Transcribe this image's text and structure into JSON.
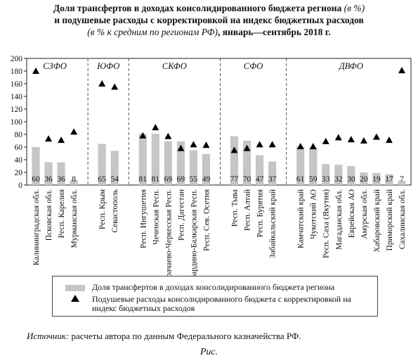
{
  "title": {
    "line1_a": "Доля трансфертов в доходах консолидированного бюджета региона ",
    "line1_b": "(в %)",
    "line2": "и подушевые расходы с корректировкой на индекс бюджетных расходов",
    "line3_a": "(в % к средним по регионам РФ)",
    "line3_b": ", январь—сентябрь 2018 г."
  },
  "source": {
    "label": "Источник:",
    "text": " расчеты автора по данным Федерального казначейства РФ."
  },
  "caption": "Рис.",
  "legend": {
    "bars": "Доля трансфертов в доходах консолидированного бюджета региона",
    "markers": "Подушевые расходы консолидированного бюджета с корректировкой на индекс бюджетных расходов"
  },
  "colors": {
    "bar": "#c6c6c6",
    "marker": "#000000",
    "divider": "#555555"
  },
  "chart_data": {
    "type": "bar",
    "ylim": [
      0,
      200
    ],
    "yticks": [
      0,
      20,
      40,
      60,
      80,
      100,
      120,
      140,
      160,
      180,
      200
    ],
    "grid": false,
    "legend_position": "bottom",
    "groups": [
      {
        "name": "СЗФО",
        "categories": [
          "Калининградская обл.",
          "Псковская обл.",
          "Респ. Карелия",
          "Мурманская обл."
        ]
      },
      {
        "name": "ЮФО",
        "categories": [
          "Респ. Крым",
          "Севастополь"
        ]
      },
      {
        "name": "СКФО",
        "categories": [
          "Респ. Ингушетия",
          "Чеченская Респ.",
          "Карачаево-Черкесская Респ.",
          "Респ. Дагестан",
          "Кабардино-Балкарская Респ.",
          "Респ. Сев. Осетия"
        ]
      },
      {
        "name": "СФО",
        "categories": [
          "Респ. Тыва",
          "Респ. Алтай",
          "Респ. Бурятия",
          "Забайкальский край"
        ]
      },
      {
        "name": "ДВФО",
        "categories": [
          "Камчатский край",
          "Чукотский АО",
          "Респ. Саха (Якутия)",
          "Магаданская обл.",
          "Еврейская АО",
          "Амурская обл.",
          "Хабаровский край",
          "Приморский край",
          "Сахалинская обл."
        ]
      }
    ],
    "categories": [
      "Калининградская обл.",
      "Псковская обл.",
      "Респ. Карелия",
      "Мурманская обл.",
      "Респ. Крым",
      "Севастополь",
      "Респ. Ингушетия",
      "Чеченская Респ.",
      "Карачаево-Черкесская Респ.",
      "Респ. Дагестан",
      "Кабардино-Балкарская Респ.",
      "Респ. Сев. Осетия",
      "Респ. Тыва",
      "Респ. Алтай",
      "Респ. Бурятия",
      "Забайкальский край",
      "Камчатский край",
      "Чукотский АО",
      "Респ. Саха (Якутия)",
      "Магаданская обл.",
      "Еврейская АО",
      "Амурская обл.",
      "Хабаровский край",
      "Приморский край",
      "Сахалинская обл."
    ],
    "series": [
      {
        "name": "Доля трансфертов в доходах консолидированного бюджета региона",
        "kind": "bar",
        "values": [
          60,
          36,
          36,
          8,
          65,
          54,
          81,
          81,
          69,
          69,
          55,
          49,
          77,
          70,
          47,
          37,
          61,
          59,
          33,
          32,
          30,
          20,
          19,
          17,
          7
        ]
      },
      {
        "name": "Подушевые расходы консолидированного бюджета с корректировкой на индекс бюджетных расходов",
        "kind": "marker",
        "values": [
          180,
          73,
          71,
          84,
          160,
          155,
          78,
          91,
          77,
          58,
          64,
          63,
          55,
          58,
          64,
          64,
          61,
          61,
          69,
          75,
          72,
          70,
          76,
          71,
          181
        ]
      }
    ]
  }
}
